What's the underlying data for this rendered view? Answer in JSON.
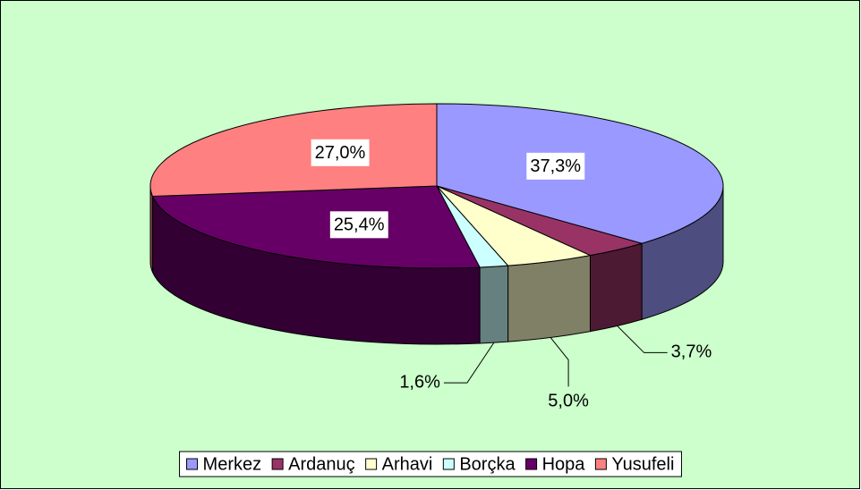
{
  "chart_data": {
    "type": "pie3d",
    "categories": [
      "Merkez",
      "Ardanuç",
      "Arhavi",
      "Borçka",
      "Hopa",
      "Yusufeli"
    ],
    "values": [
      37.3,
      3.7,
      5.0,
      1.6,
      25.4,
      27.0
    ],
    "value_labels": [
      "37,3%",
      "3,7%",
      "5,0%",
      "1,6%",
      "25,4%",
      "27,0%"
    ],
    "colors": [
      "#9999ff",
      "#993366",
      "#ffffcc",
      "#ccffff",
      "#660066",
      "#ff8080"
    ],
    "legend": "bottom"
  }
}
